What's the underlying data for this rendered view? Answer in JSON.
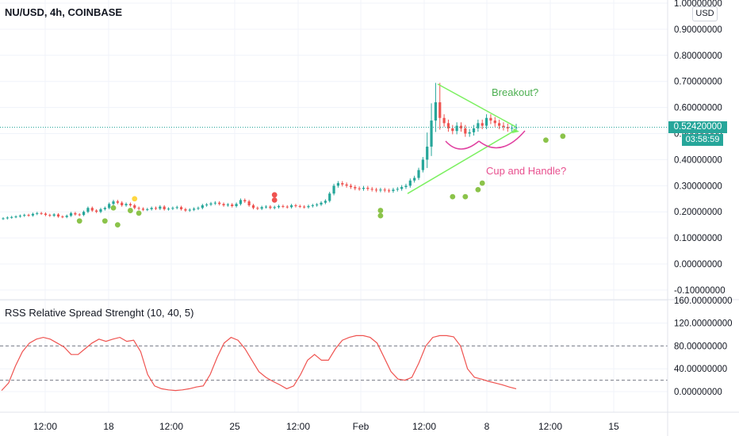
{
  "header": {
    "symbol_label": "NU/USD, 4h, COINBASE",
    "currency_button": "USD"
  },
  "price_pane": {
    "current_price": "0.52420000",
    "countdown": "03:58:59",
    "axis_ticks": [
      "1.00000000",
      "0.90000000",
      "0.80000000",
      "0.70000000",
      "0.60000000",
      "0.50000000",
      "0.40000000",
      "0.30000000",
      "0.20000000",
      "0.10000000",
      "0.00000000",
      "-0.10000000"
    ],
    "annotations": {
      "breakout": "Breakout?",
      "cup_handle": "Cup and Handle?"
    },
    "colors": {
      "up": "#26a69a",
      "down": "#ef5350",
      "trendline": "#7cf061",
      "cup": "#e040a0",
      "annotation_green": "#4caf50",
      "annotation_pink": "#e8508f"
    }
  },
  "indicator_pane": {
    "title": "RSS Relative Spread Strenght (10, 40, 5)",
    "axis_ticks": [
      "160.00000000",
      "120.00000000",
      "80.00000000",
      "40.00000000",
      "0.00000000"
    ],
    "reference_levels": [
      80,
      20
    ],
    "line_color": "#ef5350"
  },
  "time_axis": [
    "12:00",
    "18",
    "12:00",
    "25",
    "12:00",
    "Feb",
    "12:00",
    "8",
    "12:00",
    "15"
  ],
  "chart_data": {
    "type": "candlestick",
    "symbol": "NU/USD",
    "timeframe": "4h",
    "exchange": "COINBASE",
    "ylim": [
      -0.1,
      1.0
    ],
    "price_series": [
      0.175,
      0.178,
      0.18,
      0.182,
      0.185,
      0.188,
      0.186,
      0.192,
      0.195,
      0.193,
      0.188,
      0.185,
      0.19,
      0.182,
      0.18,
      0.185,
      0.195,
      0.19,
      0.188,
      0.2,
      0.215,
      0.205,
      0.2,
      0.21,
      0.215,
      0.23,
      0.24,
      0.235,
      0.225,
      0.23,
      0.225,
      0.215,
      0.212,
      0.208,
      0.21,
      0.215,
      0.212,
      0.22,
      0.21,
      0.212,
      0.215,
      0.218,
      0.21,
      0.205,
      0.208,
      0.212,
      0.215,
      0.225,
      0.228,
      0.232,
      0.235,
      0.23,
      0.225,
      0.228,
      0.222,
      0.23,
      0.245,
      0.24,
      0.225,
      0.215,
      0.212,
      0.218,
      0.22,
      0.215,
      0.218,
      0.222,
      0.22,
      0.218,
      0.225,
      0.222,
      0.22,
      0.218,
      0.222,
      0.225,
      0.228,
      0.235,
      0.242,
      0.27,
      0.3,
      0.31,
      0.305,
      0.3,
      0.295,
      0.29,
      0.288,
      0.292,
      0.288,
      0.285,
      0.282,
      0.285,
      0.282,
      0.28,
      0.285,
      0.288,
      0.295,
      0.3,
      0.32,
      0.33,
      0.36,
      0.4,
      0.45,
      0.55,
      0.62,
      0.56,
      0.54,
      0.52,
      0.51,
      0.53,
      0.52,
      0.5,
      0.505,
      0.52,
      0.54,
      0.53,
      0.56,
      0.55,
      0.54,
      0.53,
      0.525,
      0.52,
      0.522,
      0.524
    ],
    "signal_markers": [
      {
        "index": 18,
        "price": 0.165,
        "color": "green"
      },
      {
        "index": 24,
        "price": 0.165,
        "color": "green"
      },
      {
        "index": 26,
        "price": 0.215,
        "color": "green"
      },
      {
        "index": 27,
        "price": 0.15,
        "color": "green"
      },
      {
        "index": 30,
        "price": 0.205,
        "color": "green"
      },
      {
        "index": 31,
        "price": 0.25,
        "color": "yellow"
      },
      {
        "index": 32,
        "price": 0.195,
        "color": "green"
      },
      {
        "index": 64,
        "price": 0.265,
        "color": "red"
      },
      {
        "index": 64,
        "price": 0.245,
        "color": "red"
      },
      {
        "index": 89,
        "price": 0.205,
        "color": "green"
      },
      {
        "index": 89,
        "price": 0.185,
        "color": "green"
      },
      {
        "index": 106,
        "price": 0.258,
        "color": "green"
      },
      {
        "index": 109,
        "price": 0.258,
        "color": "green"
      },
      {
        "index": 112,
        "price": 0.285,
        "color": "green"
      },
      {
        "index": 113,
        "price": 0.31,
        "color": "green"
      },
      {
        "index": 128,
        "price": 0.475,
        "color": "green"
      },
      {
        "index": 132,
        "price": 0.49,
        "color": "green"
      }
    ],
    "rss_series": [
      2,
      15,
      45,
      70,
      85,
      92,
      95,
      92,
      85,
      78,
      65,
      65,
      75,
      85,
      92,
      88,
      92,
      95,
      88,
      90,
      70,
      30,
      10,
      5,
      3,
      2,
      3,
      5,
      8,
      10,
      30,
      60,
      85,
      95,
      90,
      75,
      55,
      35,
      25,
      18,
      12,
      5,
      10,
      30,
      55,
      65,
      55,
      55,
      75,
      90,
      95,
      98,
      98,
      95,
      85,
      60,
      35,
      22,
      20,
      25,
      50,
      80,
      95,
      98,
      98,
      96,
      80,
      40,
      25,
      22,
      18,
      15,
      12,
      8,
      5
    ]
  }
}
